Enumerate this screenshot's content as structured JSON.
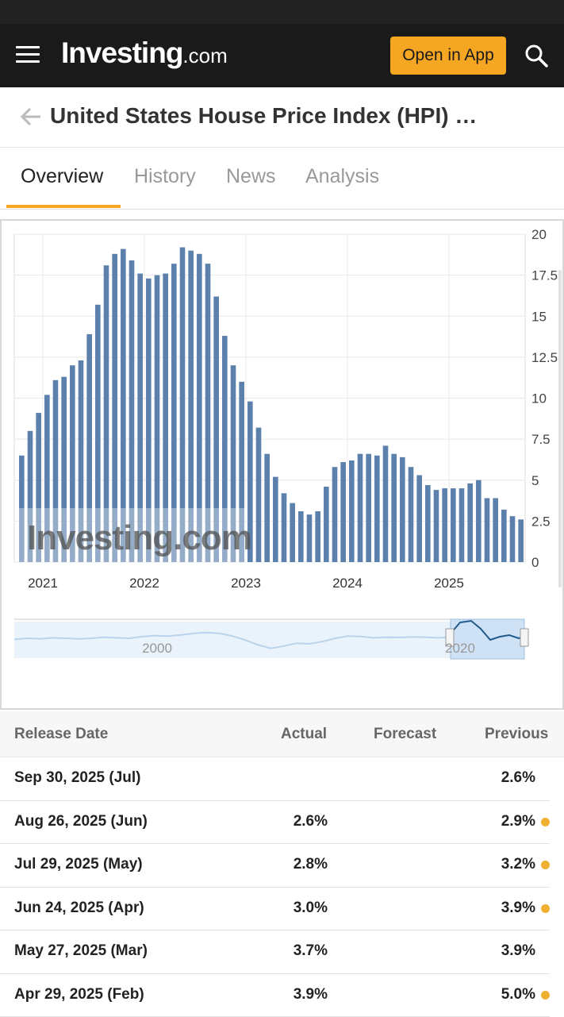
{
  "header": {
    "logo_brand": "Investing",
    "logo_tld": ".com",
    "open_app_label": "Open in App"
  },
  "title": {
    "text": "United States House Price Index (HPI) …"
  },
  "tabs": [
    {
      "label": "Overview",
      "active": true
    },
    {
      "label": "History",
      "active": false
    },
    {
      "label": "News",
      "active": false
    },
    {
      "label": "Analysis",
      "active": false
    }
  ],
  "colors": {
    "accent": "#f5a623",
    "bar": "#5b80ab",
    "header_bg": "#1a1a1a",
    "dot": "#f0b132"
  },
  "chart_data": {
    "type": "bar",
    "title": "",
    "xlabel": "",
    "ylabel": "",
    "ylim": [
      0,
      20
    ],
    "y_ticks": [
      "0",
      "2.5",
      "5",
      "7.5",
      "10",
      "12.5",
      "15",
      "17.5",
      "20"
    ],
    "x_ticks": [
      "2021",
      "2022",
      "2023",
      "2024",
      "2025"
    ],
    "x_range": [
      "2020-10",
      "2025-07"
    ],
    "watermark": "Investing.com",
    "series": [
      {
        "values": [
          6.5,
          8.0,
          9.1,
          10.2,
          11.1,
          11.3,
          12.0,
          12.3,
          13.9,
          15.7,
          18.1,
          18.8,
          19.1,
          18.4,
          17.6,
          17.3,
          17.5,
          17.6,
          18.2,
          19.2,
          19.0,
          18.8,
          18.2,
          16.2,
          13.8,
          12.0,
          11.0,
          9.8,
          8.2,
          6.6,
          5.2,
          4.2,
          3.6,
          3.1,
          2.9,
          3.1,
          4.6,
          5.8,
          6.1,
          6.2,
          6.6,
          6.6,
          6.5,
          7.1,
          6.6,
          6.4,
          5.8,
          5.3,
          4.7,
          4.4,
          4.5,
          4.5,
          4.5,
          4.8,
          5.0,
          3.9,
          3.9,
          3.2,
          2.8,
          2.6
        ]
      }
    ],
    "navigator": {
      "labels": [
        "2000",
        "2020"
      ]
    }
  },
  "table": {
    "headers": {
      "release_date": "Release Date",
      "actual": "Actual",
      "forecast": "Forecast",
      "previous": "Previous"
    },
    "rows": [
      {
        "date": "Sep 30, 2025 (Jul)",
        "actual": "",
        "forecast": "",
        "previous": "2.6%",
        "revised": false
      },
      {
        "date": "Aug 26, 2025 (Jun)",
        "actual": "2.6%",
        "forecast": "",
        "previous": "2.9%",
        "revised": true
      },
      {
        "date": "Jul 29, 2025 (May)",
        "actual": "2.8%",
        "forecast": "",
        "previous": "3.2%",
        "revised": true
      },
      {
        "date": "Jun 24, 2025 (Apr)",
        "actual": "3.0%",
        "forecast": "",
        "previous": "3.9%",
        "revised": true
      },
      {
        "date": "May 27, 2025 (Mar)",
        "actual": "3.7%",
        "forecast": "",
        "previous": "3.9%",
        "revised": false
      },
      {
        "date": "Apr 29, 2025 (Feb)",
        "actual": "3.9%",
        "forecast": "",
        "previous": "5.0%",
        "revised": true
      }
    ]
  }
}
